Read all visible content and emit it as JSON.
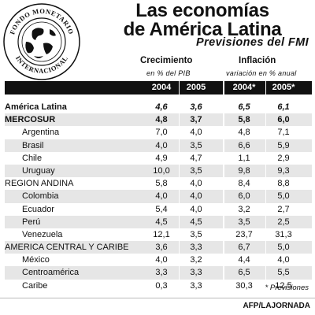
{
  "seal": {
    "text_top": "FONDO MONETARIO",
    "text_bottom": "INTERNACIONAL",
    "icon": "globe-seal-icon"
  },
  "title_line1": "Las economías",
  "title_line2": "de América Latina",
  "subtitle": "Previsiones del FMI",
  "footnote": "* Previsiones",
  "credit": "AFP/LAJORNADA",
  "chart_data": {
    "type": "table",
    "groups": [
      {
        "name": "Crecimiento",
        "sub": "en % del PIB"
      },
      {
        "name": "Inflación",
        "sub": "variación en % anual"
      }
    ],
    "columns": [
      "2004",
      "2005",
      "2004*",
      "2005*"
    ],
    "rows": [
      {
        "name": "América Latina",
        "values": [
          "4,6",
          "3,6",
          "6,5",
          "6,1"
        ]
      },
      {
        "name": "MERCOSUR",
        "values": [
          "4,8",
          "3,7",
          "5,8",
          "6,0"
        ]
      },
      {
        "name": "Argentina",
        "values": [
          "7,0",
          "4,0",
          "4,8",
          "7,1"
        ]
      },
      {
        "name": "Brasil",
        "values": [
          "4,0",
          "3,5",
          "6,6",
          "5,9"
        ]
      },
      {
        "name": "Chile",
        "values": [
          "4,9",
          "4,7",
          "1,1",
          "2,9"
        ]
      },
      {
        "name": "Uruguay",
        "values": [
          "10,0",
          "3,5",
          "9,8",
          "9,3"
        ]
      },
      {
        "name": "REGION ANDINA",
        "values": [
          "5,8",
          "4,0",
          "8,4",
          "8,8"
        ]
      },
      {
        "name": "Colombia",
        "values": [
          "4,0",
          "4,0",
          "6,0",
          "5,0"
        ]
      },
      {
        "name": "Ecuador",
        "values": [
          "5,4",
          "4,0",
          "3,2",
          "2,7"
        ]
      },
      {
        "name": "Perú",
        "values": [
          "4,5",
          "4,5",
          "3,5",
          "2,5"
        ]
      },
      {
        "name": "Venezuela",
        "values": [
          "12,1",
          "3,5",
          "23,7",
          "31,3"
        ]
      },
      {
        "name": "AMERICA CENTRAL Y CARIBE",
        "values": [
          "3,6",
          "3,3",
          "6,7",
          "5,0"
        ]
      },
      {
        "name": "México",
        "values": [
          "4,0",
          "3,2",
          "4,4",
          "4,0"
        ]
      },
      {
        "name": "Centroamérica",
        "values": [
          "3,3",
          "3,3",
          "6,5",
          "5,5"
        ]
      },
      {
        "name": "Caribe",
        "values": [
          "0,3",
          "3,3",
          "30,3",
          "12,5"
        ]
      }
    ]
  }
}
